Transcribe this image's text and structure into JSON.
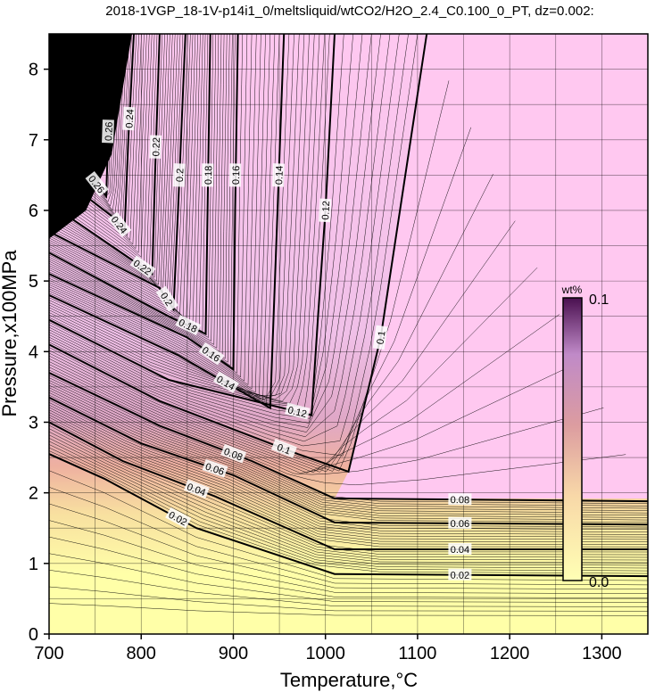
{
  "chart_data": {
    "type": "contour",
    "title": "2018-1VGP_18-1V-p14i1_0/meltsliquid/wtCO2/H2O_2.4_C0.100_0_PT, dz=0.002:",
    "xlabel": "Temperature,°C",
    "ylabel": "Pressure,x100MPa",
    "xlim": [
      700,
      1350
    ],
    "ylim": [
      0,
      8.5
    ],
    "xticks": [
      700,
      800,
      900,
      1000,
      1100,
      1200,
      1300
    ],
    "yticks": [
      0,
      1,
      2,
      3,
      4,
      5,
      6,
      7,
      8
    ],
    "grid": true,
    "contour_interval": 0.002,
    "colorbar": {
      "unit": "wt%",
      "min_label": "0.0",
      "max_label": "0.1",
      "min": 0.0,
      "max": 0.1,
      "colors": [
        "#ffffb4",
        "#f4c0a0",
        "#d89098",
        "#b07ab0",
        "#4a1050"
      ]
    },
    "background_colors": {
      "saturated_region": "#ffc8f0",
      "low_value_region": "#ffffa8"
    },
    "contours": [
      {
        "value": 0.02,
        "label": "0.02",
        "points": [
          [
            700,
            2.55
          ],
          [
            760,
            2.2
          ],
          [
            860,
            1.5
          ],
          [
            1010,
            0.85
          ],
          [
            1350,
            0.82
          ]
        ]
      },
      {
        "value": 0.04,
        "label": "0.04",
        "points": [
          [
            700,
            3.0
          ],
          [
            780,
            2.45
          ],
          [
            880,
            1.95
          ],
          [
            1010,
            1.2
          ],
          [
            1350,
            1.2
          ]
        ]
      },
      {
        "value": 0.06,
        "label": "0.06",
        "points": [
          [
            700,
            3.35
          ],
          [
            800,
            2.7
          ],
          [
            900,
            2.25
          ],
          [
            1010,
            1.58
          ],
          [
            1350,
            1.55
          ]
        ]
      },
      {
        "value": 0.08,
        "label": "0.08",
        "points": [
          [
            700,
            3.7
          ],
          [
            820,
            2.95
          ],
          [
            920,
            2.45
          ],
          [
            1010,
            1.92
          ],
          [
            1350,
            1.88
          ]
        ]
      },
      {
        "value": 0.1,
        "label": "0.1",
        "points": [
          [
            700,
            4.1
          ],
          [
            820,
            3.3
          ],
          [
            970,
            2.55
          ],
          [
            1025,
            2.3
          ],
          [
            1060,
            4.2
          ],
          [
            1110,
            8.5
          ]
        ]
      },
      {
        "value": 0.12,
        "label": "0.12",
        "points": [
          [
            700,
            4.45
          ],
          [
            830,
            3.6
          ],
          [
            985,
            3.1
          ],
          [
            992,
            4.5
          ],
          [
            1000,
            6.0
          ],
          [
            1010,
            8.5
          ]
        ]
      },
      {
        "value": 0.14,
        "label": "0.14",
        "points": [
          [
            700,
            4.8
          ],
          [
            840,
            3.95
          ],
          [
            940,
            3.2
          ],
          [
            948,
            6.0
          ],
          [
            955,
            8.5
          ]
        ]
      },
      {
        "value": 0.16,
        "label": "0.16",
        "points": [
          [
            700,
            5.1
          ],
          [
            850,
            4.2
          ],
          [
            900,
            3.75
          ],
          [
            902,
            6.0
          ],
          [
            905,
            8.5
          ]
        ]
      },
      {
        "value": 0.18,
        "label": "0.18",
        "points": [
          [
            700,
            5.4
          ],
          [
            830,
            4.5
          ],
          [
            870,
            4.25
          ],
          [
            872,
            6.0
          ],
          [
            875,
            8.5
          ]
        ]
      },
      {
        "value": 0.2,
        "label": "0.2",
        "points": [
          [
            700,
            5.7
          ],
          [
            820,
            4.9
          ],
          [
            835,
            4.6
          ],
          [
            840,
            6.0
          ],
          [
            848,
            8.5
          ]
        ]
      },
      {
        "value": 0.22,
        "label": "0.22",
        "points": [
          [
            700,
            6.1
          ],
          [
            790,
            5.3
          ],
          [
            812,
            5.1
          ],
          [
            815,
            6.5
          ],
          [
            820,
            8.5
          ]
        ]
      },
      {
        "value": 0.24,
        "label": "0.24",
        "points": [
          [
            700,
            6.6
          ],
          [
            770,
            5.9
          ],
          [
            782,
            5.7
          ],
          [
            786,
            7.0
          ],
          [
            792,
            8.5
          ]
        ]
      },
      {
        "value": 0.26,
        "label": "0.26",
        "points": [
          [
            700,
            7.1
          ],
          [
            750,
            6.4
          ],
          [
            762,
            6.2
          ],
          [
            768,
            8.5
          ]
        ]
      }
    ]
  }
}
